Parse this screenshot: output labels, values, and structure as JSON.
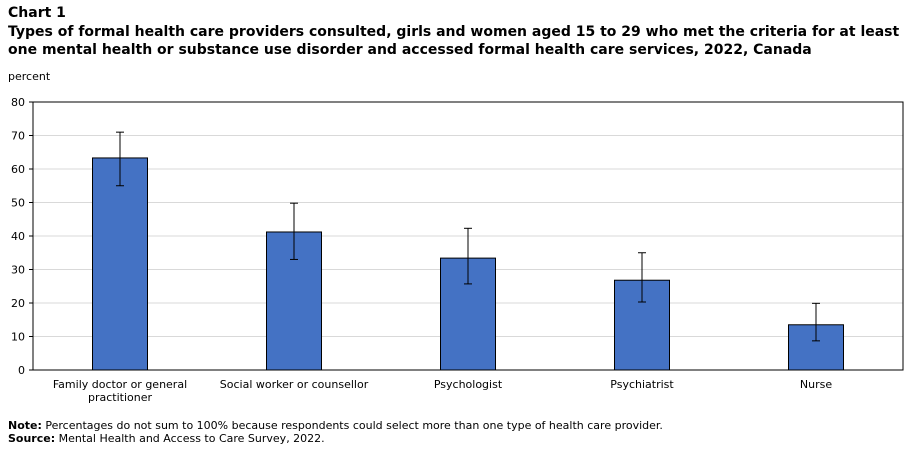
{
  "chart_number": "Chart 1",
  "chart_title": "Types of formal health care providers consulted, girls and women aged 15 to 29 who met the criteria for at least one mental health or substance use disorder and accessed formal health care services, 2022, Canada",
  "note_label": "Note:",
  "note_text": "Percentages do not sum to 100% because respondents could select more than one type of health care provider.",
  "source_label": "Source:",
  "source_text": "Mental Health and Access to Care Survey, 2022.",
  "chart_data": {
    "type": "bar",
    "title": "Types of formal health care providers consulted, girls and women aged 15 to 29 who met the criteria for at least one mental health or substance use disorder and accessed formal health care services, 2022, Canada",
    "ylabel": "percent",
    "xlabel": "",
    "ylim": [
      0,
      80
    ],
    "yticks": [
      0,
      10,
      20,
      30,
      40,
      50,
      60,
      70,
      80
    ],
    "grid": true,
    "bar_color": "#4472c4",
    "categories": [
      [
        "Family doctor or general",
        "practitioner"
      ],
      [
        "Social worker or counsellor"
      ],
      [
        "Psychologist"
      ],
      [
        "Psychiatrist"
      ],
      [
        "Nurse"
      ]
    ],
    "values": [
      63.3,
      41.2,
      33.4,
      26.8,
      13.5
    ],
    "error_low": [
      55.0,
      33.0,
      25.7,
      20.3,
      8.7
    ],
    "error_high": [
      71.0,
      49.8,
      42.3,
      35.0,
      19.9
    ]
  }
}
